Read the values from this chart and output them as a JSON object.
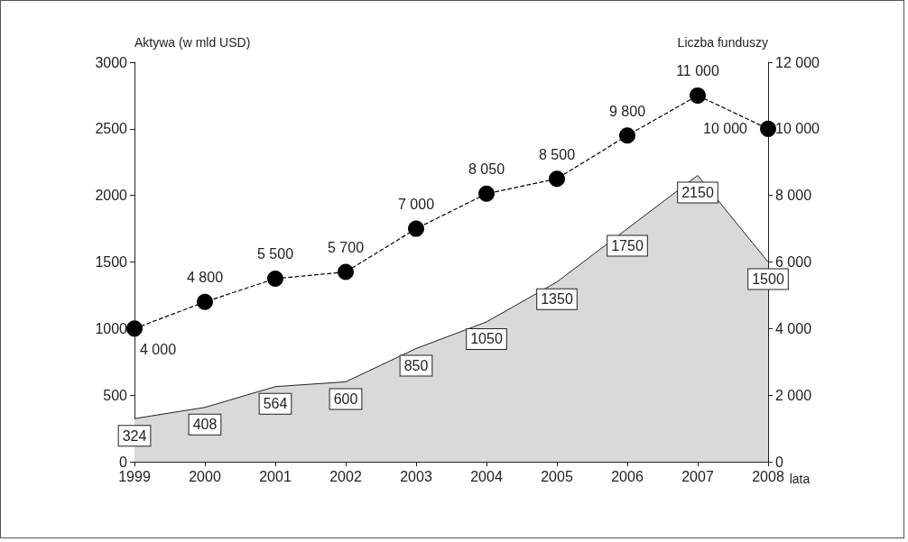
{
  "chart_data": {
    "type": "area",
    "categories": [
      "1999",
      "2000",
      "2001",
      "2002",
      "2003",
      "2004",
      "2005",
      "2006",
      "2007",
      "2008"
    ],
    "xlabel": "lata",
    "ylabel": "Aktywa (w mld USD)",
    "y2label": "Liczba funduszy",
    "ylim": [
      0,
      3000
    ],
    "yticks": [
      0,
      500,
      1000,
      1500,
      2000,
      2500,
      3000
    ],
    "y2lim": [
      0,
      12000
    ],
    "y2ticks": [
      0,
      {
        "value": 2000,
        "label": "2 000"
      },
      {
        "value": 4000,
        "label": "4 000"
      },
      {
        "value": 6000,
        "label": "6 000"
      },
      {
        "value": 8000,
        "label": "8 000"
      },
      {
        "value": 10000,
        "label": "10 000"
      },
      {
        "value": 12000,
        "label": "12 000"
      }
    ],
    "series": [
      {
        "color": "#d9d9d9",
        "values": [
          324,
          408,
          564,
          600,
          850,
          1050,
          1350,
          1750,
          2150,
          1500
        ],
        "value_labels": [
          "324",
          "408",
          "564",
          "600",
          "850",
          "1050",
          "1350",
          "1750",
          "2150",
          "1500"
        ]
      },
      {
        "type": "line",
        "axis": "y2",
        "color": "#000000",
        "marker": "circle",
        "line_style": "dashed",
        "values": [
          4000,
          4800,
          5500,
          5700,
          7000,
          8050,
          8500,
          9800,
          11000,
          10000
        ],
        "value_labels": [
          "4 000",
          "4 800",
          "5 500",
          "5 700",
          "7 000",
          "8 050",
          "8 500",
          "9 800",
          "11 000",
          "10 000"
        ]
      }
    ]
  }
}
